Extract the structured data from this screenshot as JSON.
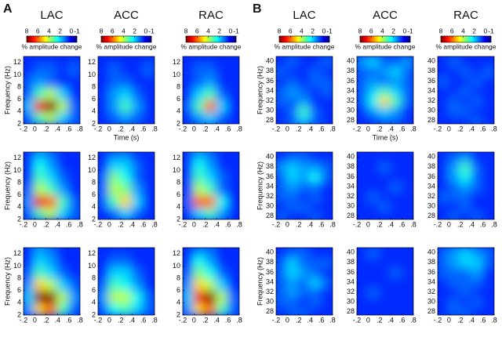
{
  "colorbar": {
    "lim": [
      8,
      -1
    ],
    "ticks": [
      8,
      6,
      4,
      2,
      0,
      -1
    ],
    "label": "% amplitude change"
  },
  "xlabel": "Time (s)",
  "ylabel": "Frequency (Hz)",
  "sections": [
    {
      "type": "heatmap",
      "label": "A",
      "columns": [
        "LAC",
        "ACC",
        "RAC"
      ],
      "x": [
        -0.1,
        0.1,
        0.3,
        0.5,
        0.7
      ],
      "y": [
        3,
        5,
        7,
        9,
        11,
        13
      ],
      "xlim": [
        -0.2,
        0.8
      ],
      "ylim": [
        2,
        13
      ],
      "xticks": [
        {
          "value": -0.2,
          "label": "-.2"
        },
        0,
        {
          "value": 0.2,
          "label": ".2"
        },
        {
          "value": 0.4,
          "label": ".4"
        },
        {
          "value": 0.6,
          "label": ".6"
        },
        {
          "value": 0.8,
          "label": ".8"
        }
      ],
      "yticks": [
        2,
        4,
        6,
        8,
        10,
        12
      ],
      "rows": [
        [
          [
            [
              1,
              3,
              4,
              2,
              1
            ],
            [
              2,
              7,
              8,
              4,
              1
            ],
            [
              1,
              3,
              4,
              2,
              0.5
            ],
            [
              1,
              1.5,
              1,
              0.5,
              0.5
            ],
            [
              0.5,
              1,
              1,
              0.5,
              1
            ],
            [
              0.5,
              0.5,
              0.5,
              0.5,
              0.5
            ]
          ],
          [
            [
              0.5,
              1,
              1.5,
              1,
              0.5
            ],
            [
              0.5,
              1.5,
              3,
              1.5,
              0.5
            ],
            [
              0.5,
              1.5,
              2,
              1,
              0.5
            ],
            [
              0.5,
              1,
              1,
              0.5,
              0.5
            ],
            [
              0.5,
              1,
              0.5,
              0.5,
              1
            ],
            [
              0.5,
              0.5,
              0.5,
              0.5,
              0.5
            ]
          ],
          [
            [
              0.5,
              1.5,
              2,
              1,
              0.5
            ],
            [
              1,
              3,
              6,
              2,
              0.5
            ],
            [
              0.5,
              2,
              3,
              1,
              0.5
            ],
            [
              0.5,
              1,
              1.5,
              0.5,
              0.5
            ],
            [
              0.5,
              1,
              1,
              0.5,
              0.5
            ],
            [
              0.5,
              0.5,
              0.5,
              0.5,
              0.5
            ]
          ]
        ],
        [
          [
            [
              1,
              3,
              4,
              2,
              1
            ],
            [
              1.5,
              7,
              6,
              3,
              1
            ],
            [
              1,
              4,
              3,
              1.5,
              0.5
            ],
            [
              0.5,
              3,
              2,
              1,
              0.5
            ],
            [
              0.5,
              2.5,
              1.5,
              0.5,
              0.5
            ],
            [
              0.5,
              1.5,
              1,
              0.5,
              0.5
            ]
          ],
          [
            [
              0.5,
              1,
              2,
              1,
              0.5
            ],
            [
              1,
              3,
              5,
              2,
              0.5
            ],
            [
              1,
              4,
              3.5,
              1.5,
              0.5
            ],
            [
              1,
              3.5,
              2.5,
              1,
              0.5
            ],
            [
              0.5,
              2,
              2,
              1,
              0.5
            ],
            [
              0.5,
              1,
              1,
              0.5,
              0.5
            ]
          ],
          [
            [
              0.5,
              2,
              3,
              1.5,
              0.5
            ],
            [
              1,
              6,
              6,
              2.5,
              0.5
            ],
            [
              0.5,
              4,
              3,
              1,
              0.5
            ],
            [
              0.5,
              3,
              2,
              1,
              0.5
            ],
            [
              0.5,
              2.5,
              1.5,
              0.5,
              0.5
            ],
            [
              0.5,
              1.5,
              1,
              0.5,
              0.5
            ]
          ]
        ],
        [
          [
            [
              1.5,
              5,
              6,
              3,
              1
            ],
            [
              2,
              8,
              8,
              4,
              1.5
            ],
            [
              1.5,
              5,
              4,
              2,
              1
            ],
            [
              1,
              3,
              2,
              1,
              0.5
            ],
            [
              0.5,
              2,
              1.5,
              0.5,
              0.5
            ],
            [
              0.5,
              1.5,
              1,
              0.5,
              0.5
            ]
          ],
          [
            [
              1,
              2.5,
              3,
              2,
              1
            ],
            [
              1.5,
              4,
              4,
              2.5,
              1
            ],
            [
              1,
              3,
              2.5,
              1.5,
              0.5
            ],
            [
              0.5,
              2,
              2,
              1,
              0.5
            ],
            [
              0.5,
              1,
              1,
              0.5,
              0.5
            ],
            [
              0.5,
              0.5,
              0.5,
              0.5,
              0.5
            ]
          ],
          [
            [
              1.5,
              5,
              6,
              3,
              1
            ],
            [
              2,
              7,
              8,
              4,
              1
            ],
            [
              1.5,
              5,
              4,
              2,
              0.5
            ],
            [
              1,
              3.5,
              2.5,
              1,
              0.5
            ],
            [
              0.5,
              2.5,
              1.5,
              0.5,
              0.5
            ],
            [
              0.5,
              1,
              1,
              0.5,
              0.5
            ]
          ]
        ]
      ]
    },
    {
      "type": "heatmap",
      "label": "B",
      "columns": [
        "LAC",
        "ACC",
        "RAC"
      ],
      "x": [
        -0.1,
        0.1,
        0.3,
        0.5,
        0.7
      ],
      "y": [
        28,
        30,
        32,
        34,
        36,
        38,
        40
      ],
      "xlim": [
        -0.2,
        0.8
      ],
      "ylim": [
        27.3,
        41
      ],
      "xticks": [
        {
          "value": -0.2,
          "label": "-.2"
        },
        0,
        {
          "value": 0.2,
          "label": ".2"
        },
        {
          "value": 0.4,
          "label": ".4"
        },
        {
          "value": 0.6,
          "label": ".6"
        },
        {
          "value": 0.8,
          "label": ".8"
        }
      ],
      "yticks": [
        28,
        30,
        32,
        34,
        36,
        38,
        40
      ],
      "rows": [
        [
          [
            [
              0.5,
              1,
              2,
              1,
              0.5
            ],
            [
              0.5,
              1,
              3,
              1,
              0.5
            ],
            [
              1,
              1,
              1.5,
              0.5,
              0.5
            ],
            [
              1,
              1.5,
              1,
              0.5,
              1
            ],
            [
              0.5,
              1,
              0.5,
              1,
              1
            ],
            [
              1,
              0.5,
              0.5,
              1,
              0.5
            ],
            [
              0.5,
              1,
              0.5,
              0.5,
              1
            ]
          ],
          [
            [
              0.5,
              0.5,
              1,
              1,
              0.5
            ],
            [
              0.5,
              1.5,
              2,
              1.5,
              0.5
            ],
            [
              1,
              2.5,
              5,
              3,
              1
            ],
            [
              1,
              2,
              3,
              2,
              1
            ],
            [
              1,
              1.5,
              1,
              1.5,
              1
            ],
            [
              1,
              1,
              1.5,
              2,
              1
            ],
            [
              1.5,
              2,
              1,
              1,
              1.5
            ]
          ],
          [
            [
              0.5,
              0.5,
              0.5,
              1,
              0.5
            ],
            [
              0.5,
              1,
              1,
              0.5,
              0.5
            ],
            [
              0.5,
              1,
              0.5,
              1,
              0.5
            ],
            [
              0.5,
              0.5,
              1,
              0.5,
              0.5
            ],
            [
              1,
              0.5,
              0.5,
              1,
              0.5
            ],
            [
              0.5,
              0.5,
              1,
              0.5,
              1
            ],
            [
              0.5,
              1,
              0.5,
              0.5,
              0.5
            ]
          ]
        ],
        [
          [
            [
              1,
              0.5,
              0.5,
              1,
              0.5
            ],
            [
              0.5,
              1,
              1,
              0.5,
              0.5
            ],
            [
              1,
              1,
              0.5,
              1,
              0.5
            ],
            [
              1,
              1.5,
              1,
              1,
              0.5
            ],
            [
              1,
              2,
              1.5,
              2.5,
              1
            ],
            [
              1.5,
              2,
              1.5,
              1.5,
              1
            ],
            [
              0.5,
              1,
              1,
              0.5,
              0.5
            ]
          ],
          [
            [
              0.5,
              0.5,
              0.5,
              0.5,
              0.5
            ],
            [
              0.5,
              0.5,
              1,
              0.5,
              0.5
            ],
            [
              0.5,
              1,
              0.5,
              0.5,
              0.5
            ],
            [
              0.5,
              0.5,
              0.5,
              1,
              0.5
            ],
            [
              0.5,
              0.5,
              0.5,
              0.5,
              0.5
            ],
            [
              0.5,
              0.5,
              1,
              0.5,
              0.5
            ],
            [
              0.5,
              0.5,
              0.5,
              0.5,
              0.5
            ]
          ],
          [
            [
              0.5,
              1,
              0.5,
              1,
              0.5
            ],
            [
              0.5,
              0.5,
              1,
              0.5,
              0.5
            ],
            [
              1,
              1,
              1,
              0.5,
              0.5
            ],
            [
              0.5,
              1,
              1.5,
              1,
              0.5
            ],
            [
              0.5,
              1.5,
              2.5,
              1,
              0.5
            ],
            [
              0.5,
              1.5,
              3,
              1,
              0.5
            ],
            [
              0.5,
              1,
              1.5,
              0.5,
              0.5
            ]
          ]
        ],
        [
          [
            [
              0.5,
              1,
              1,
              0.5,
              0.5
            ],
            [
              1,
              1,
              0.5,
              1,
              0.5
            ],
            [
              1,
              1.5,
              1,
              1,
              0.5
            ],
            [
              1,
              1.5,
              1,
              2,
              1
            ],
            [
              1,
              2,
              1.5,
              1,
              0.5
            ],
            [
              1,
              2,
              1,
              1,
              1
            ],
            [
              0.5,
              1,
              1,
              0.5,
              0.5
            ]
          ],
          [
            [
              0.5,
              0.5,
              0.5,
              0.5,
              0.5
            ],
            [
              0.5,
              0.5,
              0.5,
              0.5,
              0.5
            ],
            [
              0.5,
              1,
              0.5,
              0.5,
              0.5
            ],
            [
              0.5,
              0.5,
              0.5,
              0.5,
              0.5
            ],
            [
              0.5,
              0.5,
              0.5,
              1,
              0.5
            ],
            [
              0.5,
              0.5,
              0.5,
              0.5,
              0.5
            ],
            [
              0.5,
              1,
              0.5,
              0.5,
              0.5
            ]
          ],
          [
            [
              0.5,
              1,
              1,
              0.5,
              0.5
            ],
            [
              0.5,
              1,
              0.5,
              1,
              0.5
            ],
            [
              0.5,
              0.5,
              1,
              0.5,
              0.5
            ],
            [
              0.5,
              1,
              1,
              1,
              0.5
            ],
            [
              1,
              1,
              1,
              1.5,
              0.5
            ],
            [
              1,
              1.5,
              2,
              2,
              1
            ],
            [
              1,
              1.5,
              2,
              1.5,
              1
            ]
          ]
        ]
      ]
    }
  ]
}
